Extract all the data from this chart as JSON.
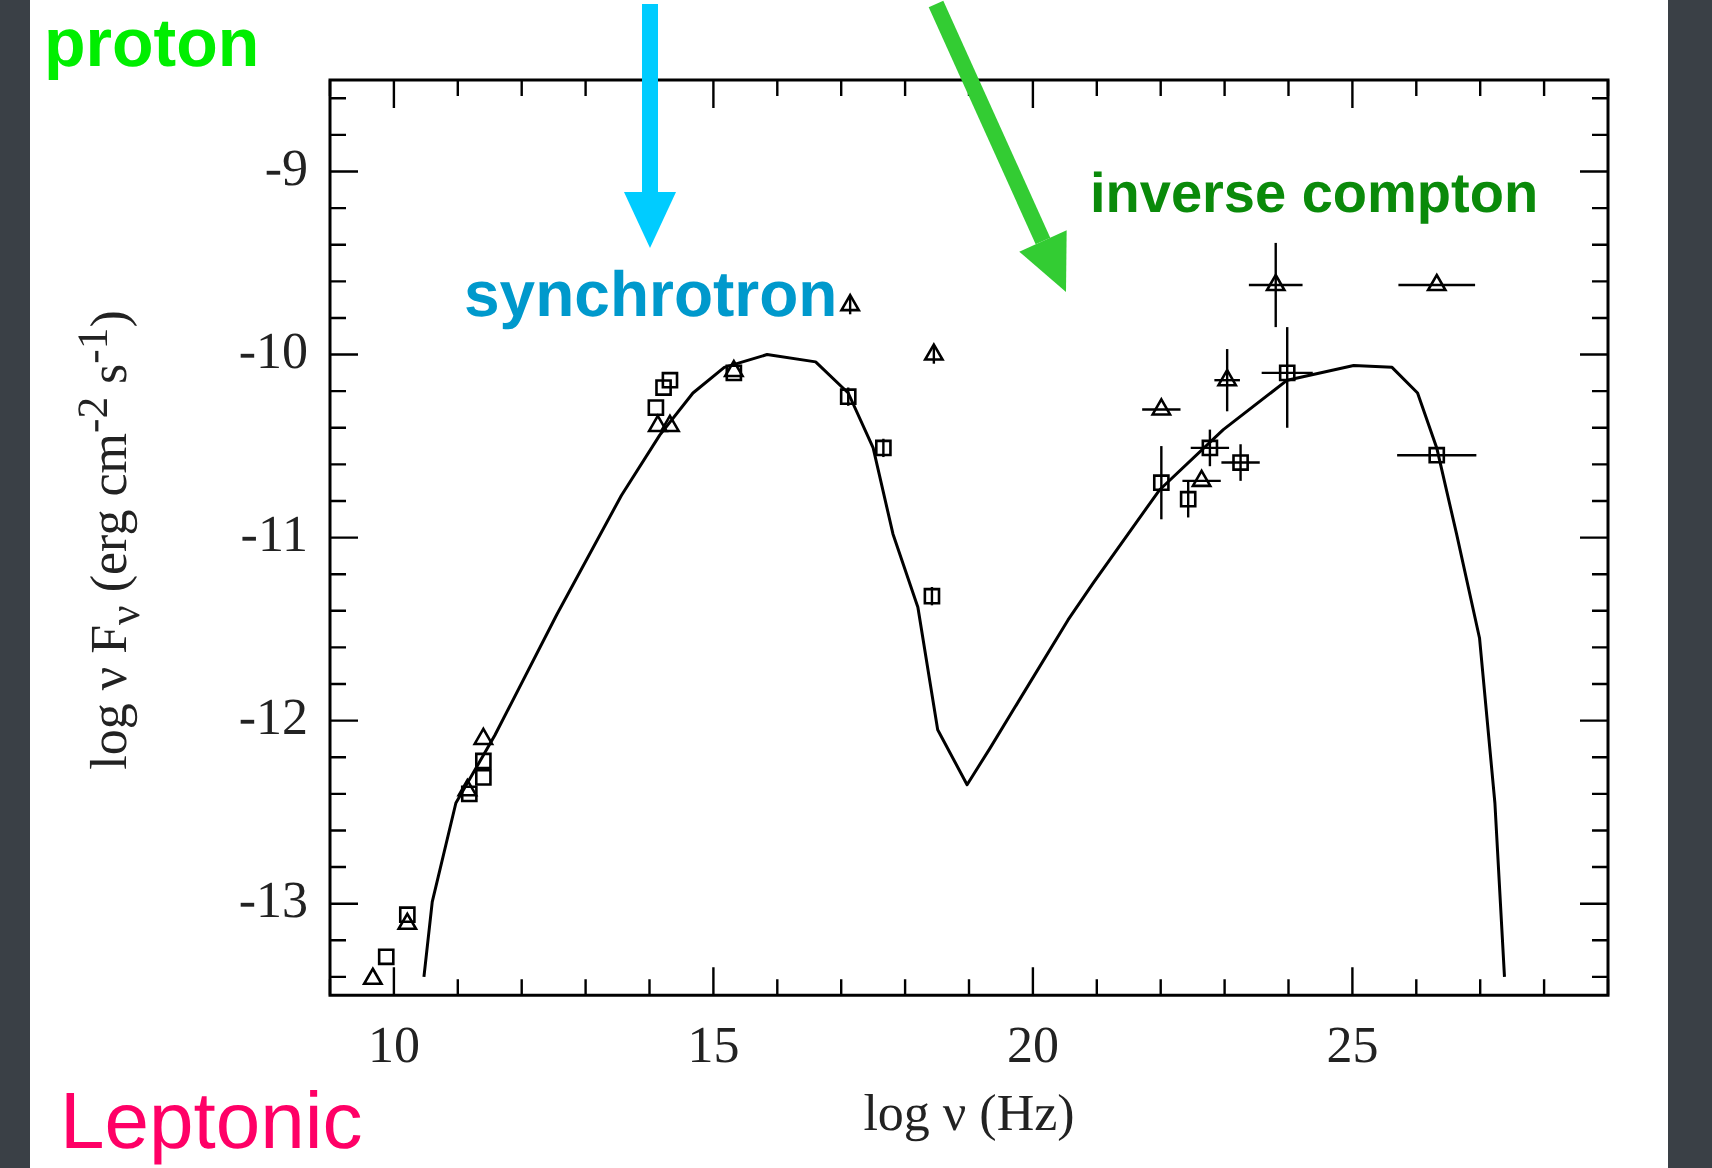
{
  "chart_data": {
    "type": "scatter",
    "xlabel": "log ν (Hz)",
    "ylabel": "log ν F$_{ν}$ (erg cm$^{-2}$ s$^{-1}$)",
    "annotations": [
      "proton",
      "synchrotron",
      "inverse compton",
      "Leptonic"
    ],
    "xlim": [
      9,
      29
    ],
    "xticks": [
      {
        "value": 9,
        "label": null
      },
      10,
      {
        "value": 11,
        "label": null
      },
      {
        "value": 12,
        "label": null
      },
      {
        "value": 13,
        "label": null
      },
      {
        "value": 14,
        "label": null
      },
      15,
      {
        "value": 16,
        "label": null
      },
      {
        "value": 17,
        "label": null
      },
      {
        "value": 18,
        "label": null
      },
      {
        "value": 19,
        "label": null
      },
      20,
      {
        "value": 21,
        "label": null
      },
      {
        "value": 22,
        "label": null
      },
      {
        "value": 23,
        "label": null
      },
      {
        "value": 24,
        "label": null
      },
      25,
      {
        "value": 26,
        "label": null
      },
      {
        "value": 27,
        "label": null
      },
      {
        "value": 28,
        "label": null
      },
      {
        "value": 29,
        "label": null
      }
    ],
    "ylim": [
      -13.5,
      -8.5
    ],
    "yticks": [
      {
        "value": -13.4,
        "label": null
      },
      {
        "value": -13.2,
        "label": null
      },
      -13,
      {
        "value": -12.8,
        "label": null
      },
      {
        "value": -12.6,
        "label": null
      },
      {
        "value": -12.4,
        "label": null
      },
      {
        "value": -12.2,
        "label": null
      },
      -12,
      {
        "value": -11.8,
        "label": null
      },
      {
        "value": -11.6,
        "label": null
      },
      {
        "value": -11.4,
        "label": null
      },
      {
        "value": -11.2,
        "label": null
      },
      -11,
      {
        "value": -10.8,
        "label": null
      },
      {
        "value": -10.6,
        "label": null
      },
      {
        "value": -10.4,
        "label": null
      },
      {
        "value": -10.2,
        "label": null
      },
      -10,
      {
        "value": -9.8,
        "label": null
      },
      {
        "value": -9.6,
        "label": null
      },
      {
        "value": -9.4,
        "label": null
      },
      {
        "value": -9.2,
        "label": null
      },
      -9,
      {
        "value": -8.8,
        "label": null
      },
      {
        "value": -8.6,
        "label": null
      }
    ],
    "legend": false,
    "series": [
      {
        "type": "line",
        "color": "#000000",
        "marker": "none",
        "line_style": "solid",
        "x": [
          10.47,
          10.6,
          10.97,
          11.58,
          12.55,
          13.56,
          14.16,
          14.68,
          15.17,
          15.84,
          16.6,
          17.11,
          17.5,
          17.81,
          18.2,
          18.51,
          18.97,
          19.33,
          20.55,
          20.94,
          21.98,
          22.98,
          23.98,
          25.02,
          25.62,
          26.02,
          26.32,
          26.63,
          26.99,
          27.23,
          27.38
        ],
        "values": [
          -13.4,
          -12.99,
          -12.45,
          -12.08,
          -11.42,
          -10.77,
          -10.44,
          -10.21,
          -10.07,
          -10.0,
          -10.04,
          -10.21,
          -10.51,
          -10.98,
          -11.38,
          -12.05,
          -12.35,
          -12.15,
          -11.45,
          -11.25,
          -10.74,
          -10.41,
          -10.14,
          -10.06,
          -10.07,
          -10.21,
          -10.51,
          -10.98,
          -11.55,
          -12.45,
          -13.4
        ]
      },
      {
        "type": "scatter",
        "color": "#000000",
        "marker": "square",
        "x": [
          9.88,
          10.21,
          11.18,
          11.4,
          11.4,
          14.1,
          14.22,
          14.32,
          15.32,
          17.11,
          17.66,
          18.42,
          22.01,
          22.43,
          22.77,
          23.25,
          23.98,
          26.32
        ],
        "values": [
          -13.29,
          -13.06,
          -12.4,
          -12.22,
          -12.31,
          -10.29,
          -10.18,
          -10.14,
          -10.1,
          -10.23,
          -10.51,
          -11.32,
          -10.7,
          -10.79,
          -10.51,
          -10.59,
          -10.1,
          -10.55
        ],
        "errors": [
          null,
          null,
          null,
          null,
          null,
          null,
          null,
          null,
          null,
          0.05,
          0.05,
          0.05,
          0.2,
          0.1,
          0.1,
          0.1,
          [
            -10.4,
            -9.85
          ],
          null
        ],
        "xerrors": [
          null,
          null,
          null,
          null,
          null,
          null,
          null,
          null,
          null,
          null,
          null,
          null,
          null,
          null,
          0.3,
          0.3,
          0.4,
          0.62
        ]
      },
      {
        "type": "scatter",
        "color": "#000000",
        "marker": "triangle",
        "x": [
          9.67,
          10.21,
          11.15,
          11.4,
          14.13,
          14.32,
          15.32,
          17.14,
          18.45,
          22.01,
          22.64,
          23.04,
          23.8,
          26.32
        ],
        "values": [
          -13.41,
          -13.11,
          -12.38,
          -12.1,
          -10.39,
          -10.39,
          -10.09,
          -9.73,
          -10.0,
          -10.3,
          -10.69,
          -10.14,
          -9.62,
          -9.62
        ],
        "errors": [
          null,
          null,
          null,
          null,
          null,
          null,
          null,
          0.05,
          0.05,
          null,
          null,
          0.17,
          0.23,
          null
        ],
        "xerrors": [
          null,
          null,
          null,
          null,
          null,
          null,
          null,
          null,
          null,
          0.3,
          0.3,
          0.2,
          0.42,
          0.6
        ]
      }
    ]
  }
}
